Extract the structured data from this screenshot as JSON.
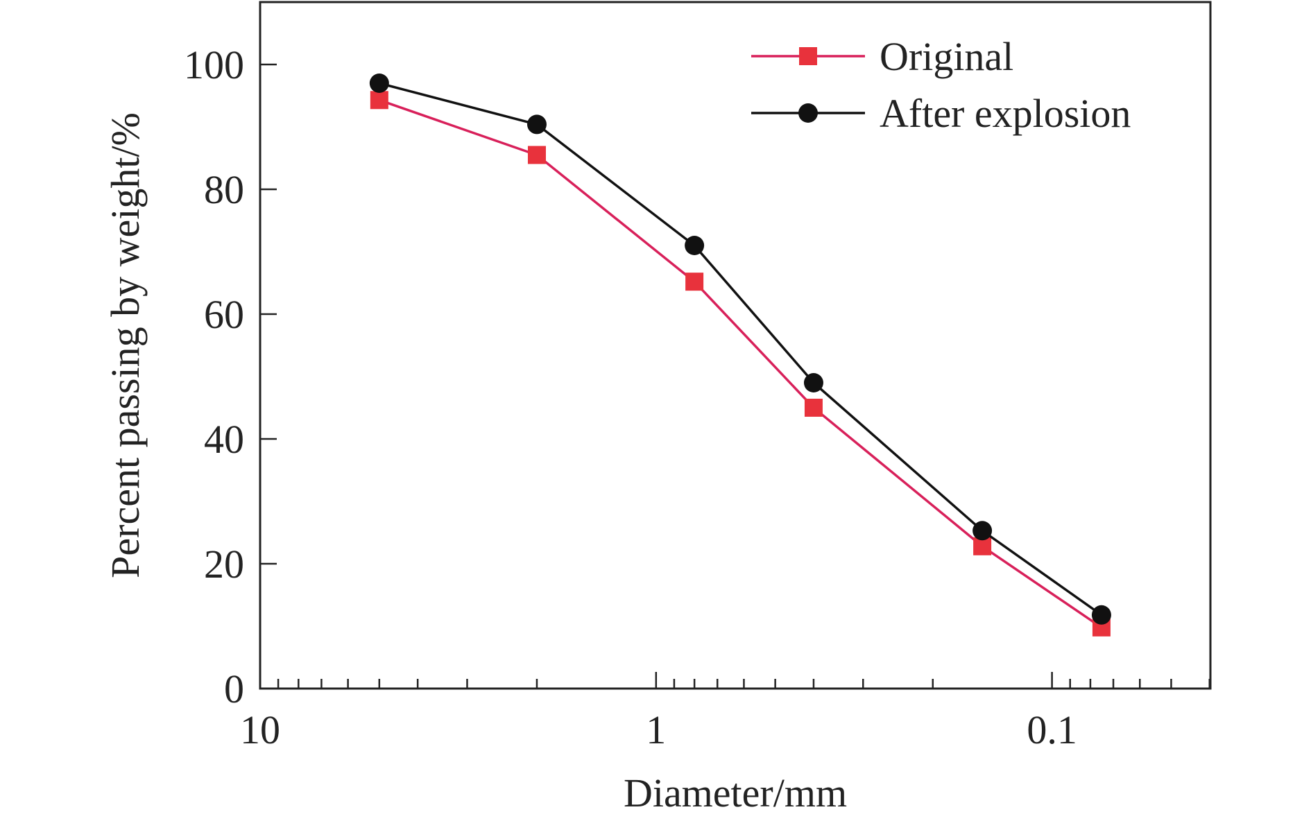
{
  "chart_data": {
    "type": "line",
    "xlabel": "Diameter/mm",
    "ylabel": "Percent passing by weight/%",
    "x_scale": "log",
    "x_reversed": true,
    "xlim": [
      10,
      0.0398
    ],
    "ylim": [
      0,
      110
    ],
    "x_ticks": [
      10,
      1,
      0.1
    ],
    "x_tick_labels": [
      "10",
      "1",
      "0.1"
    ],
    "y_ticks": [
      0,
      20,
      40,
      60,
      80,
      100
    ],
    "y_tick_labels": [
      "0",
      "20",
      "40",
      "60",
      "80",
      "100"
    ],
    "grid": false,
    "legend_position": "top-right",
    "x": [
      5,
      2,
      0.8,
      0.4,
      0.15,
      0.075
    ],
    "series": [
      {
        "name": "Original",
        "color": "#e8323c",
        "line_color": "#d8205a",
        "marker": "square",
        "values": [
          94.3,
          85.5,
          65.2,
          45.0,
          22.8,
          9.8
        ]
      },
      {
        "name": "After explosion",
        "color": "#111111",
        "line_color": "#111111",
        "marker": "circle",
        "values": [
          97.0,
          90.4,
          71.0,
          49.0,
          25.3,
          11.8
        ]
      }
    ]
  }
}
